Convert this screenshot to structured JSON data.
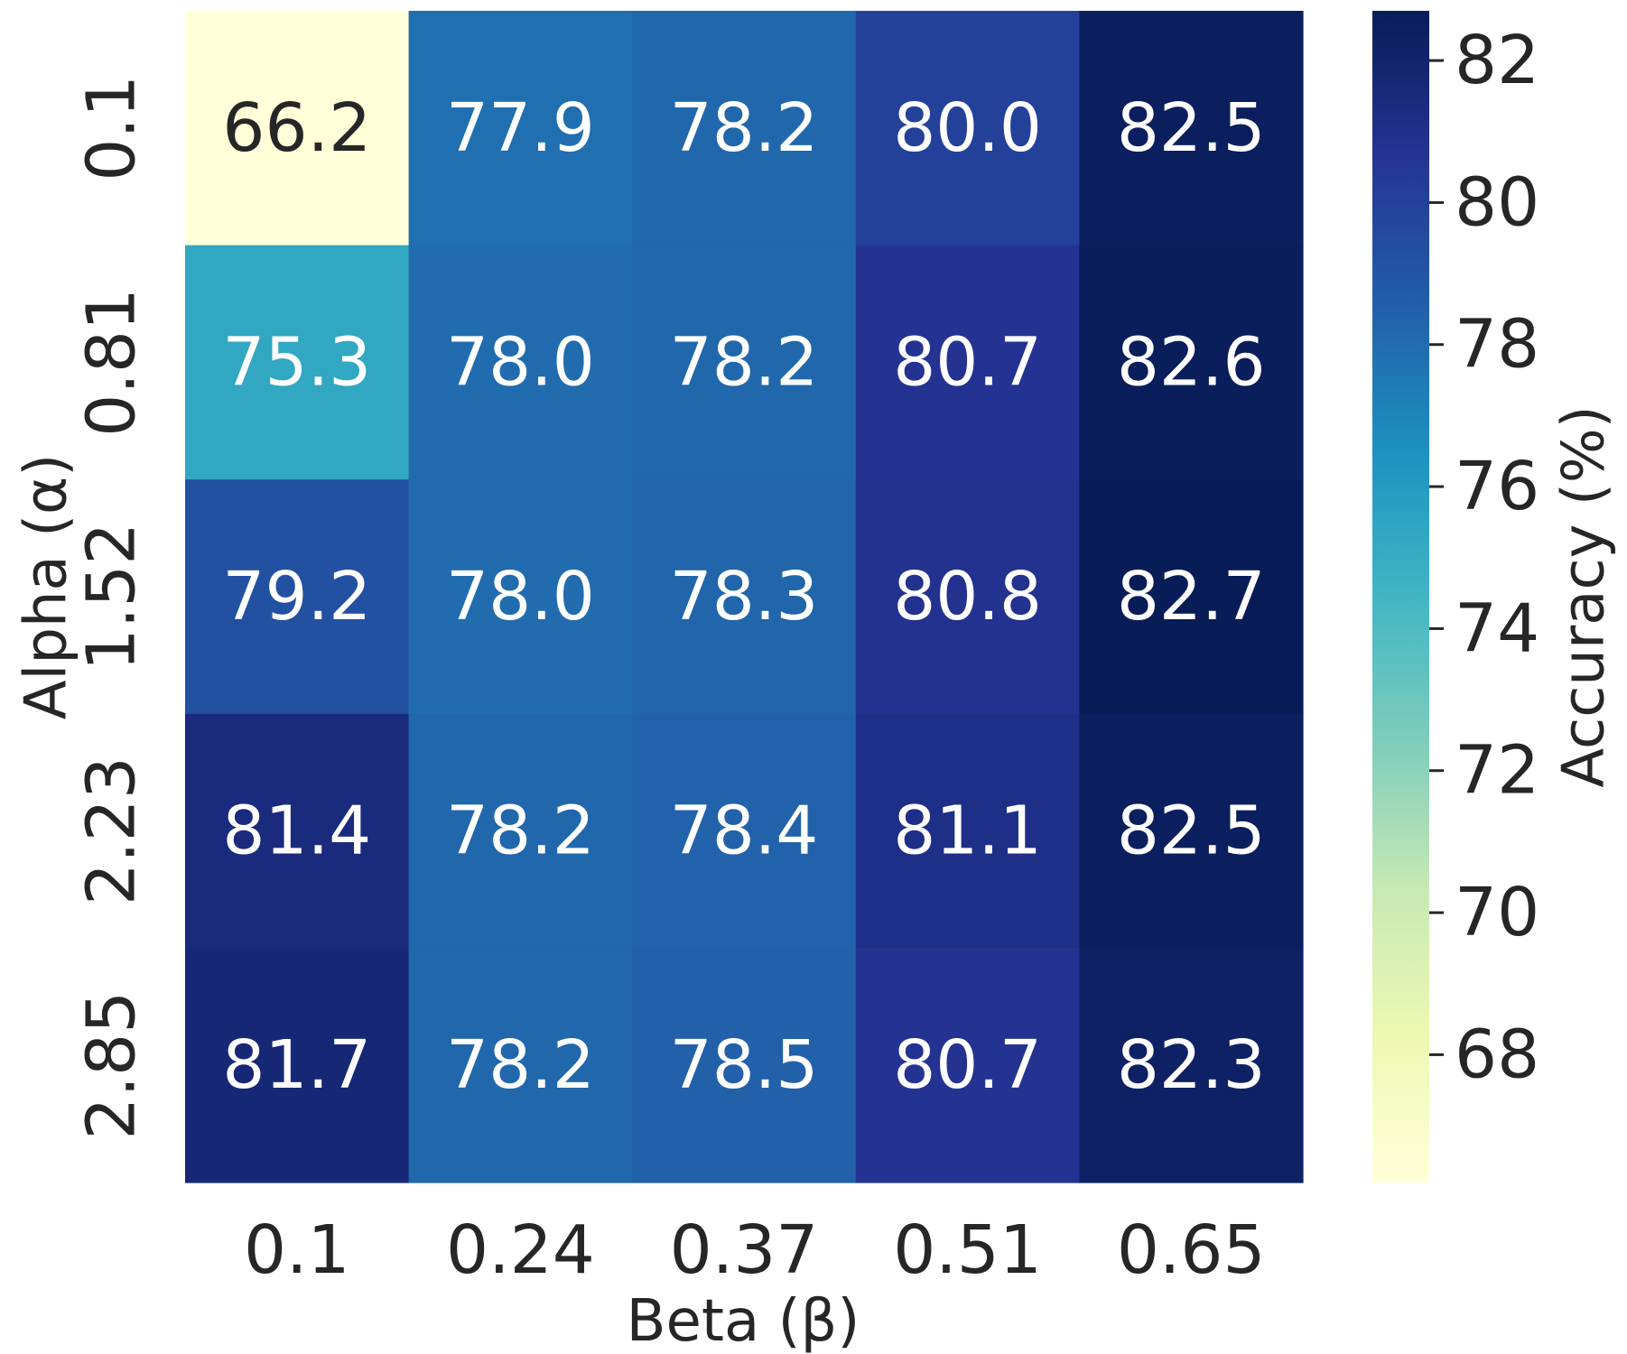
{
  "chart_data": {
    "type": "heatmap",
    "xlabel": "Beta (β)",
    "ylabel": "Alpha (α)",
    "x_categories": [
      "0.1",
      "0.24",
      "0.37",
      "0.51",
      "0.65"
    ],
    "y_categories": [
      "0.1",
      "0.81",
      "1.52",
      "2.23",
      "2.85"
    ],
    "values": [
      [
        66.2,
        77.9,
        78.2,
        80.0,
        82.5
      ],
      [
        75.3,
        78.0,
        78.2,
        80.7,
        82.6
      ],
      [
        79.2,
        78.0,
        78.3,
        80.8,
        82.7
      ],
      [
        81.4,
        78.2,
        78.4,
        81.1,
        82.5
      ],
      [
        81.7,
        78.2,
        78.5,
        80.7,
        82.3
      ]
    ],
    "cell_labels": [
      [
        "66.2",
        "77.9",
        "78.2",
        "80.0",
        "82.5"
      ],
      [
        "75.3",
        "78.0",
        "78.2",
        "80.7",
        "82.6"
      ],
      [
        "79.2",
        "78.0",
        "78.3",
        "80.8",
        "82.7"
      ],
      [
        "81.4",
        "78.2",
        "78.4",
        "81.1",
        "82.5"
      ],
      [
        "81.7",
        "78.2",
        "78.5",
        "80.7",
        "82.3"
      ]
    ],
    "colorbar": {
      "label": "Accuracy (%)",
      "range": [
        66.2,
        82.7
      ],
      "ticks": [
        68,
        70,
        72,
        74,
        76,
        78,
        80,
        82
      ],
      "colormap": "YlGnBu"
    },
    "colors": {
      "text_dark": "#262626",
      "text_light": "#ffffff",
      "stops": [
        "#ffffd9",
        "#edf8b1",
        "#c7e9b4",
        "#7fcdbb",
        "#41b6c4",
        "#1d91c0",
        "#225ea8",
        "#253494",
        "#081d58"
      ]
    }
  }
}
